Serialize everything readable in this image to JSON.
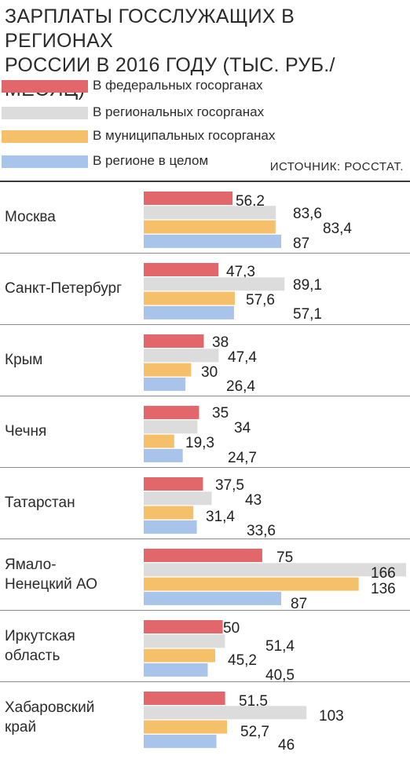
{
  "title_line1": "ЗАРПЛАТЫ ГОССЛУЖАЩИХ В РЕГИОНАХ",
  "title_line2": "РОССИИ В 2016 ГОДУ (ТЫС. РУБ./МЕСЯЦ)",
  "source": "ИСТОЧНИК: РОССТАТ.",
  "colors": {
    "federal": "#e2676b",
    "regional": "#dcdcdc",
    "municipal": "#f6c06a",
    "region_total": "#a9c4ea"
  },
  "chart_data": {
    "type": "bar",
    "orientation": "horizontal",
    "title": "ЗАРПЛАТЫ ГОССЛУЖАЩИХ В РЕГИОНАХ РОССИИ В 2016 ГОДУ (ТЫС. РУБ./МЕСЯЦ)",
    "categories": [
      "Москва",
      "Санкт-Петербург",
      "Крым",
      "Чечня",
      "Татарстан",
      "Ямало-\nНенецкий АО",
      "Иркутская\nобласть",
      "Хабаровский\nкрай"
    ],
    "series": [
      {
        "name": "В федеральных госорганах",
        "color": "#e2676b",
        "values": [
          56.2,
          47.3,
          38,
          35,
          37.5,
          75,
          50,
          51.5
        ],
        "labels": [
          "56,2",
          "47,3",
          "38",
          "35",
          "37,5",
          "75",
          "50",
          "51,5"
        ]
      },
      {
        "name": "В региональных госорганах",
        "color": "#dcdcdc",
        "values": [
          83.6,
          89.1,
          47.4,
          34,
          43,
          166,
          51.4,
          103
        ],
        "labels": [
          "83,6",
          "89,1",
          "47,4",
          "34",
          "43",
          "166",
          "51,4",
          "103"
        ]
      },
      {
        "name": "В муниципальных госорганах",
        "color": "#f6c06a",
        "values": [
          83.4,
          57.6,
          30,
          19.3,
          31.4,
          136,
          45.2,
          52.7
        ],
        "labels": [
          "83,4",
          "57,6",
          "30",
          "19,3",
          "31,4",
          "136",
          "45,2",
          "52,7"
        ]
      },
      {
        "name": "В регионе в целом",
        "color": "#a9c4ea",
        "values": [
          87,
          57.1,
          26.4,
          24.7,
          33.6,
          87,
          40.5,
          46
        ],
        "labels": [
          "87",
          "57,1",
          "26,4",
          "24,7",
          "33,6",
          "87",
          "40,5",
          "46"
        ]
      }
    ],
    "xlim": [
      0,
      166
    ],
    "grid": false,
    "legend_position": "top"
  }
}
